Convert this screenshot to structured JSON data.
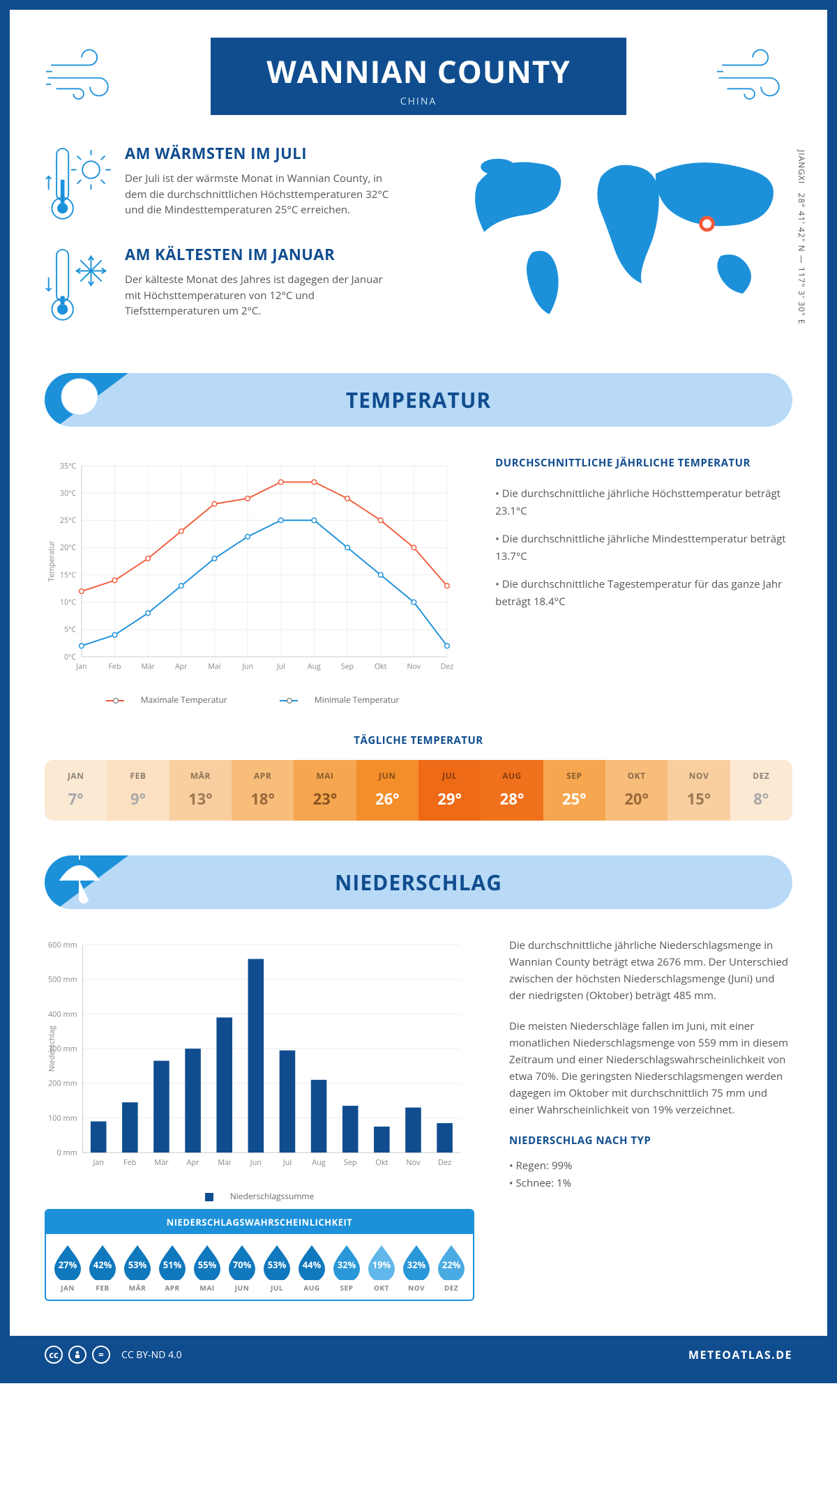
{
  "header": {
    "title": "WANNIAN COUNTY",
    "country": "CHINA",
    "region": "JIANGXI",
    "coords": "28° 41' 42\" N — 117° 3' 30\" E"
  },
  "intro": {
    "hot": {
      "title": "AM WÄRMSTEN IM JULI",
      "body": "Der Juli ist der wärmste Monat in Wannian County, in dem die durchschnittlichen Höchsttemperaturen 32°C und die Mindesttemperaturen 25°C erreichen."
    },
    "cold": {
      "title": "AM KÄLTESTEN IM JANUAR",
      "body": "Der kälteste Monat des Jahres ist dagegen der Januar mit Höchsttemperaturen von 12°C und Tiefsttemperaturen um 2°C."
    }
  },
  "sections": {
    "temperature": "TEMPERATUR",
    "precip": "NIEDERSCHLAG"
  },
  "months_short": [
    "Jan",
    "Feb",
    "Mär",
    "Apr",
    "Mai",
    "Jun",
    "Jul",
    "Aug",
    "Sep",
    "Okt",
    "Nov",
    "Dez"
  ],
  "months_upper": [
    "JAN",
    "FEB",
    "MÄR",
    "APR",
    "MAI",
    "JUN",
    "JUL",
    "AUG",
    "SEP",
    "OKT",
    "NOV",
    "DEZ"
  ],
  "temperature": {
    "chart": {
      "type": "line",
      "ylabel": "Temperatur",
      "ylim": [
        0,
        35
      ],
      "ytick_step": 5,
      "grid_color": "#eeeeee",
      "series": [
        {
          "name": "Maximale Temperatur",
          "color": "#f15b3a",
          "values": [
            12,
            14,
            18,
            23,
            28,
            29,
            32,
            32,
            29,
            25,
            20,
            13
          ]
        },
        {
          "name": "Minimale Temperatur",
          "color": "#1c91da",
          "values": [
            2,
            4,
            8,
            13,
            18,
            22,
            25,
            25,
            20,
            15,
            10,
            2
          ]
        }
      ]
    },
    "legend_max": "Maximale Temperatur",
    "legend_min": "Minimale Temperatur",
    "side": {
      "title": "DURCHSCHNITTLICHE JÄHRLICHE TEMPERATUR",
      "b1": "• Die durchschnittliche jährliche Höchsttemperatur beträgt 23.1°C",
      "b2": "• Die durchschnittliche jährliche Mindesttemperatur beträgt 13.7°C",
      "b3": "• Die durchschnittliche Tagestemperatur für das ganze Jahr beträgt 18.4°C"
    },
    "daily": {
      "title": "TÄGLICHE TEMPERATUR",
      "values": [
        "7°",
        "9°",
        "13°",
        "18°",
        "23°",
        "26°",
        "29°",
        "28°",
        "25°",
        "20°",
        "15°",
        "8°"
      ],
      "bg_colors": [
        "#fbe9d4",
        "#fbe0c1",
        "#f9cfa0",
        "#f8bd7a",
        "#f6a64f",
        "#f38e2a",
        "#ef6a17",
        "#f0711c",
        "#f6a64f",
        "#f8bd7a",
        "#f9cfa0",
        "#fbe9d4"
      ],
      "text_colors": [
        "#a9a9a9",
        "#a9a9a9",
        "#9b7a54",
        "#9b6a3b",
        "#8a5322",
        "#ffffff",
        "#ffffff",
        "#ffffff",
        "#ffffff",
        "#9b6a3b",
        "#9b7a54",
        "#a9a9a9"
      ]
    }
  },
  "precip": {
    "chart": {
      "type": "bar",
      "ylabel": "Niederschlag",
      "ylim": [
        0,
        600
      ],
      "ytick_step": 100,
      "bar_color": "#104d8f",
      "values": [
        90,
        145,
        265,
        300,
        390,
        559,
        295,
        210,
        135,
        75,
        130,
        85
      ],
      "legend": "Niederschlagssumme",
      "unit_suffix": " mm"
    },
    "prob": {
      "title": "NIEDERSCHLAGSWAHRSCHEINLICHKEIT",
      "values": [
        "27%",
        "42%",
        "53%",
        "51%",
        "55%",
        "70%",
        "53%",
        "44%",
        "32%",
        "19%",
        "32%",
        "22%"
      ],
      "colors": [
        "#1078bd",
        "#1078bd",
        "#1078bd",
        "#1078bd",
        "#1078bd",
        "#1078bd",
        "#1078bd",
        "#1078bd",
        "#2a98d8",
        "#62b7ea",
        "#2a98d8",
        "#4aaae2"
      ]
    },
    "side": {
      "p1": "Die durchschnittliche jährliche Niederschlagsmenge in Wannian County beträgt etwa 2676 mm. Der Unterschied zwischen der höchsten Niederschlagsmenge (Juni) und der niedrigsten (Oktober) beträgt 485 mm.",
      "p2": "Die meisten Niederschläge fallen im Juni, mit einer monatlichen Niederschlagsmenge von 559 mm in diesem Zeitraum und einer Niederschlagswahrscheinlichkeit von etwa 70%. Die geringsten Niederschlagsmengen werden dagegen im Oktober mit durchschnittlich 75 mm und einer Wahrscheinlichkeit von 19% verzeichnet.",
      "type_title": "NIEDERSCHLAG NACH TYP",
      "type_rain": "• Regen: 99%",
      "type_snow": "• Schnee: 1%"
    }
  },
  "footer": {
    "license": "CC BY-ND 4.0",
    "brand": "METEOATLAS.DE"
  },
  "colors": {
    "primary": "#104d8f",
    "accent": "#1c91da",
    "light": "#b8daf7",
    "orange": "#f15b3a"
  }
}
